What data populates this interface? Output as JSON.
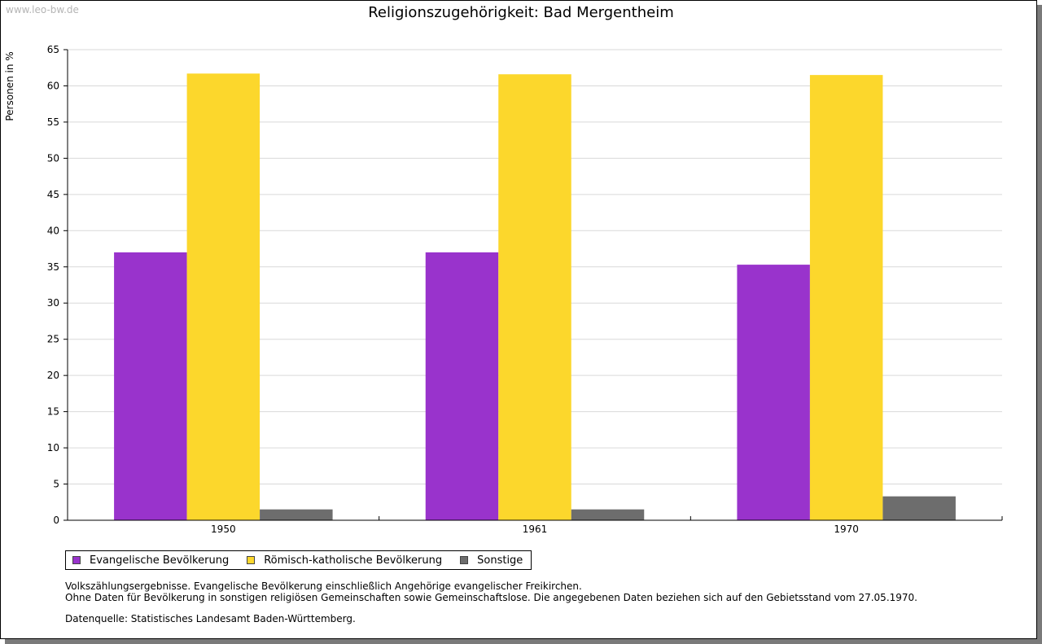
{
  "watermark": "www.leo-bw.de",
  "chart_data": {
    "type": "bar",
    "title": "Religionszugehörigkeit: Bad Mergentheim",
    "xlabel": "",
    "ylabel": "Personen in %",
    "ylim": [
      0,
      65
    ],
    "yticks": [
      "0",
      "5",
      "10",
      "15",
      "20",
      "25",
      "30",
      "35",
      "40",
      "45",
      "50",
      "55",
      "60",
      "65"
    ],
    "grid": true,
    "legend_position": "bottom-left",
    "categories": [
      "1950",
      "1961",
      "1970"
    ],
    "series": [
      {
        "name": "Evangelische Bevölkerung",
        "color": "#9933cc",
        "values": [
          37.0,
          37.0,
          35.3
        ]
      },
      {
        "name": "Römisch-katholische Bevölkerung",
        "color": "#fcd72c",
        "values": [
          61.7,
          61.6,
          61.5
        ]
      },
      {
        "name": "Sonstige",
        "color": "#6d6d6d",
        "values": [
          1.5,
          1.5,
          3.3
        ]
      }
    ]
  },
  "notes": {
    "line1": "Volkszählungsergebnisse. Evangelische Bevölkerung einschließlich Angehörige evangelischer Freikirchen.",
    "line2": "Ohne Daten für Bevölkerung in sonstigen religiösen Gemeinschaften sowie Gemeinschaftslose. Die angegebenen Daten beziehen sich auf den Gebietsstand vom 27.05.1970.",
    "source": "Datenquelle: Statistisches Landesamt Baden-Württemberg."
  }
}
